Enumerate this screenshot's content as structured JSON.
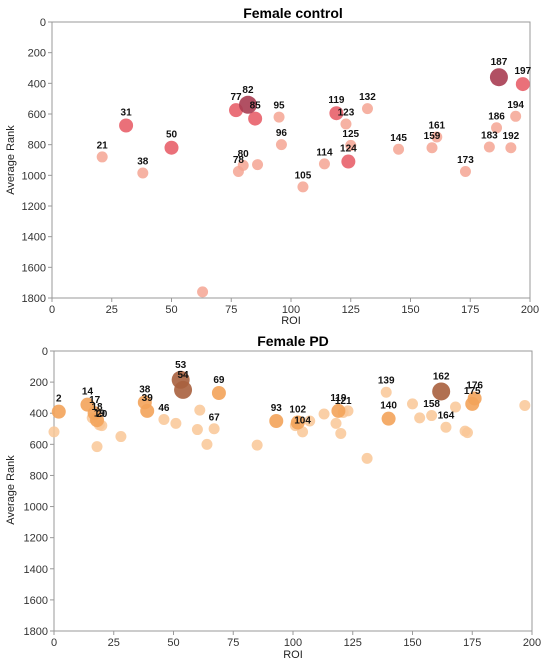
{
  "chart_data": [
    {
      "type": "scatter",
      "title": "Female control",
      "xlabel": "ROI",
      "ylabel": "Average Rank",
      "xlim": [
        0,
        200
      ],
      "ylim": [
        0,
        1800
      ],
      "y_inverted": true,
      "xticks": [
        0,
        25,
        50,
        75,
        100,
        125,
        150,
        175,
        200
      ],
      "yticks": [
        0,
        200,
        400,
        600,
        800,
        1000,
        1200,
        1400,
        1600,
        1800
      ],
      "grid": false,
      "legend": "none",
      "color_light": "#f4a593",
      "color_mid": "#e8606a",
      "color_dark": "#a83d52",
      "points": [
        {
          "x": 21,
          "y": 880,
          "size": 1,
          "label": "21"
        },
        {
          "x": 31,
          "y": 675,
          "size": 2,
          "label": "31"
        },
        {
          "x": 38,
          "y": 985,
          "size": 1,
          "label": "38"
        },
        {
          "x": 50,
          "y": 820,
          "size": 2,
          "label": "50"
        },
        {
          "x": 63,
          "y": 1760,
          "size": 1,
          "label": ""
        },
        {
          "x": 77,
          "y": 575,
          "size": 2,
          "label": "77"
        },
        {
          "x": 78,
          "y": 975,
          "size": 1,
          "label": "78"
        },
        {
          "x": 80,
          "y": 935,
          "size": 1,
          "label": "80"
        },
        {
          "x": 82,
          "y": 540,
          "size": 3,
          "label": "82"
        },
        {
          "x": 85,
          "y": 630,
          "size": 2,
          "label": "85"
        },
        {
          "x": 86,
          "y": 930,
          "size": 1,
          "label": ""
        },
        {
          "x": 95,
          "y": 620,
          "size": 1,
          "label": "95"
        },
        {
          "x": 96,
          "y": 800,
          "size": 1,
          "label": "96"
        },
        {
          "x": 105,
          "y": 1075,
          "size": 1,
          "label": "105"
        },
        {
          "x": 114,
          "y": 925,
          "size": 1,
          "label": "114"
        },
        {
          "x": 119,
          "y": 595,
          "size": 2,
          "label": "119"
        },
        {
          "x": 123,
          "y": 665,
          "size": 1,
          "label": "123"
        },
        {
          "x": 124,
          "y": 910,
          "size": 2,
          "label": "124"
        },
        {
          "x": 125,
          "y": 805,
          "size": 1,
          "label": "125"
        },
        {
          "x": 132,
          "y": 565,
          "size": 1,
          "label": "132"
        },
        {
          "x": 145,
          "y": 830,
          "size": 1,
          "label": "145"
        },
        {
          "x": 159,
          "y": 820,
          "size": 1,
          "label": "159"
        },
        {
          "x": 161,
          "y": 750,
          "size": 1,
          "label": "161"
        },
        {
          "x": 173,
          "y": 975,
          "size": 1,
          "label": "173"
        },
        {
          "x": 183,
          "y": 815,
          "size": 1,
          "label": "183"
        },
        {
          "x": 186,
          "y": 690,
          "size": 1,
          "label": "186"
        },
        {
          "x": 187,
          "y": 360,
          "size": 3,
          "label": "187"
        },
        {
          "x": 192,
          "y": 820,
          "size": 1,
          "label": "192"
        },
        {
          "x": 194,
          "y": 615,
          "size": 1,
          "label": "194"
        },
        {
          "x": 197,
          "y": 405,
          "size": 2,
          "label": "197"
        }
      ]
    },
    {
      "type": "scatter",
      "title": "Female PD",
      "xlabel": "ROI",
      "ylabel": "Average Rank",
      "xlim": [
        0,
        200
      ],
      "ylim": [
        0,
        1800
      ],
      "y_inverted": true,
      "xticks": [
        0,
        25,
        50,
        75,
        100,
        125,
        150,
        175,
        200
      ],
      "yticks": [
        0,
        200,
        400,
        600,
        800,
        1000,
        1200,
        1400,
        1600,
        1800
      ],
      "grid": false,
      "legend": "none",
      "color_light": "#f9c796",
      "color_mid": "#f3a35a",
      "color_dark": "#a9603e",
      "points": [
        {
          "x": 0,
          "y": 520,
          "size": 1,
          "label": ""
        },
        {
          "x": 2,
          "y": 390,
          "size": 2,
          "label": "2"
        },
        {
          "x": 14,
          "y": 345,
          "size": 2,
          "label": "14"
        },
        {
          "x": 16,
          "y": 430,
          "size": 1,
          "label": ""
        },
        {
          "x": 17,
          "y": 400,
          "size": 2,
          "label": "17"
        },
        {
          "x": 18,
          "y": 615,
          "size": 1,
          "label": ""
        },
        {
          "x": 18,
          "y": 445,
          "size": 2,
          "label": "18"
        },
        {
          "x": 19,
          "y": 475,
          "size": 1,
          "label": "19"
        },
        {
          "x": 20,
          "y": 480,
          "size": 1,
          "label": "20"
        },
        {
          "x": 28,
          "y": 550,
          "size": 1,
          "label": ""
        },
        {
          "x": 38,
          "y": 330,
          "size": 2,
          "label": "38"
        },
        {
          "x": 39,
          "y": 385,
          "size": 2,
          "label": "39"
        },
        {
          "x": 46,
          "y": 440,
          "size": 1,
          "label": "46"
        },
        {
          "x": 51,
          "y": 465,
          "size": 1,
          "label": ""
        },
        {
          "x": 53,
          "y": 185,
          "size": 3,
          "label": "53"
        },
        {
          "x": 54,
          "y": 250,
          "size": 3,
          "label": "54"
        },
        {
          "x": 60,
          "y": 505,
          "size": 1,
          "label": ""
        },
        {
          "x": 61,
          "y": 380,
          "size": 1,
          "label": ""
        },
        {
          "x": 64,
          "y": 600,
          "size": 1,
          "label": ""
        },
        {
          "x": 67,
          "y": 500,
          "size": 1,
          "label": "67"
        },
        {
          "x": 69,
          "y": 270,
          "size": 2,
          "label": "69"
        },
        {
          "x": 85,
          "y": 605,
          "size": 1,
          "label": ""
        },
        {
          "x": 93,
          "y": 450,
          "size": 2,
          "label": "93"
        },
        {
          "x": 101,
          "y": 480,
          "size": 1,
          "label": ""
        },
        {
          "x": 102,
          "y": 460,
          "size": 2,
          "label": "102"
        },
        {
          "x": 104,
          "y": 520,
          "size": 1,
          "label": "104"
        },
        {
          "x": 107,
          "y": 450,
          "size": 1,
          "label": ""
        },
        {
          "x": 113,
          "y": 405,
          "size": 1,
          "label": ""
        },
        {
          "x": 118,
          "y": 465,
          "size": 1,
          "label": ""
        },
        {
          "x": 119,
          "y": 385,
          "size": 2,
          "label": "119"
        },
        {
          "x": 120,
          "y": 530,
          "size": 1,
          "label": ""
        },
        {
          "x": 121,
          "y": 395,
          "size": 1,
          "label": "121"
        },
        {
          "x": 123,
          "y": 385,
          "size": 1,
          "label": ""
        },
        {
          "x": 131,
          "y": 690,
          "size": 1,
          "label": ""
        },
        {
          "x": 139,
          "y": 265,
          "size": 1,
          "label": "139"
        },
        {
          "x": 140,
          "y": 435,
          "size": 2,
          "label": "140"
        },
        {
          "x": 150,
          "y": 340,
          "size": 1,
          "label": ""
        },
        {
          "x": 153,
          "y": 430,
          "size": 1,
          "label": ""
        },
        {
          "x": 158,
          "y": 415,
          "size": 1,
          "label": "158"
        },
        {
          "x": 162,
          "y": 260,
          "size": 3,
          "label": "162"
        },
        {
          "x": 164,
          "y": 490,
          "size": 1,
          "label": "164"
        },
        {
          "x": 168,
          "y": 360,
          "size": 1,
          "label": ""
        },
        {
          "x": 172,
          "y": 515,
          "size": 1,
          "label": ""
        },
        {
          "x": 173,
          "y": 525,
          "size": 1,
          "label": ""
        },
        {
          "x": 175,
          "y": 340,
          "size": 2,
          "label": "175"
        },
        {
          "x": 176,
          "y": 305,
          "size": 2,
          "label": "176"
        },
        {
          "x": 197,
          "y": 350,
          "size": 1,
          "label": ""
        }
      ]
    }
  ]
}
